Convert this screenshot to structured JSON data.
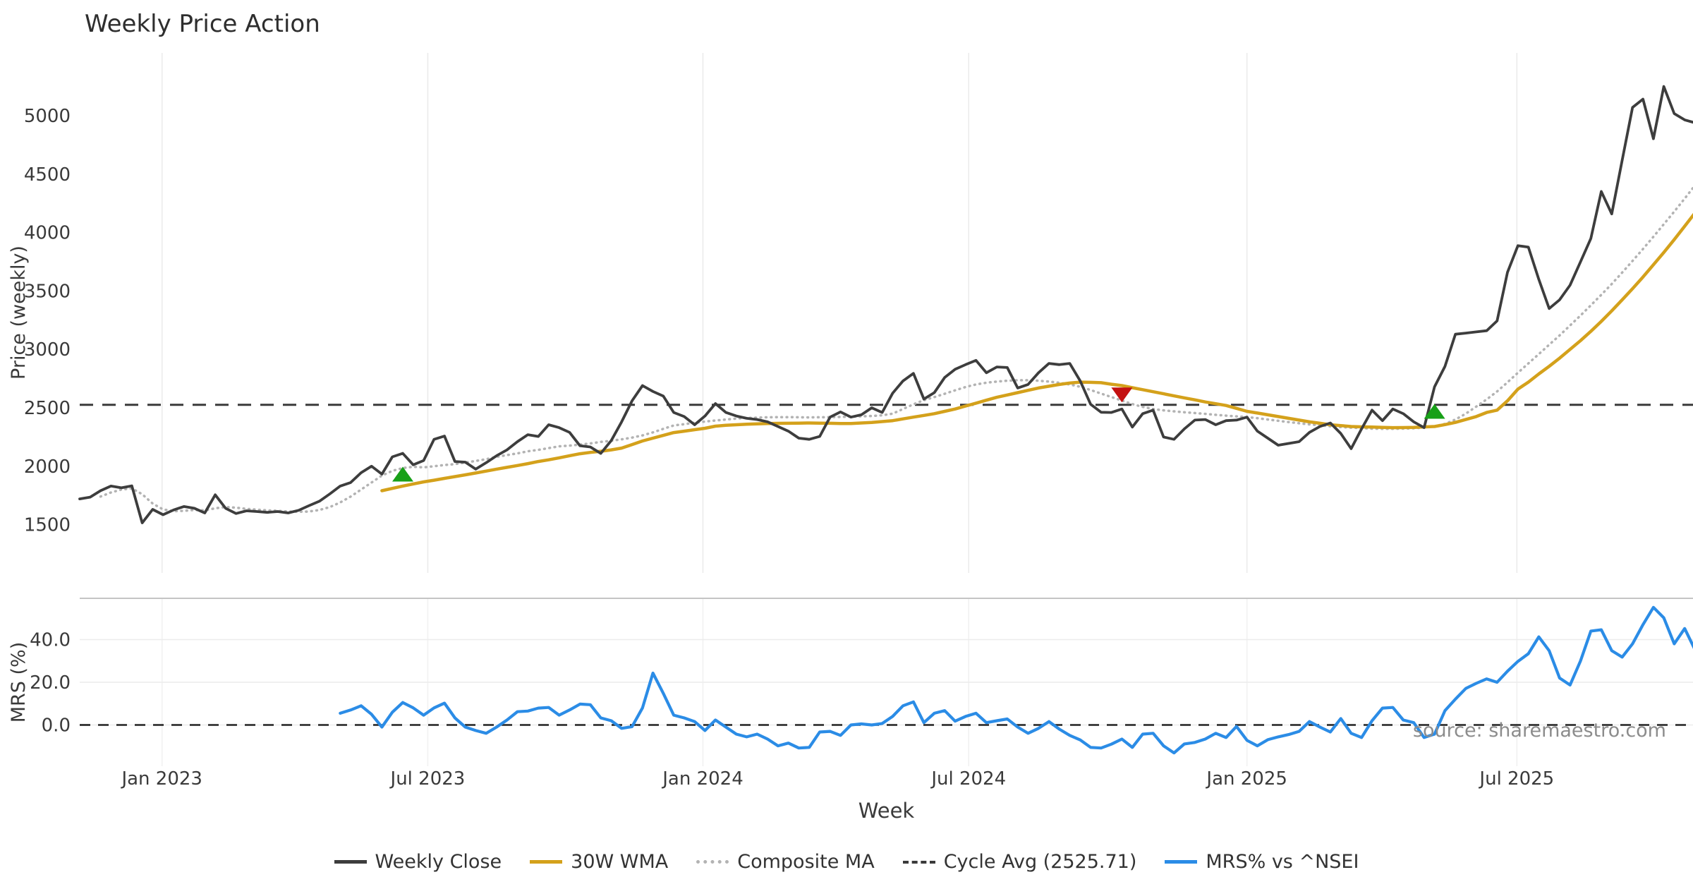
{
  "title": "Weekly Price Action",
  "source_note": "source: sharemaestro.com",
  "xlabel": "Week",
  "legend": {
    "items": [
      {
        "label": "Weekly Close",
        "color": "#3d3d3d",
        "style": "solid"
      },
      {
        "label": "30W WMA",
        "color": "#d4a11b",
        "style": "solid"
      },
      {
        "label": "Composite MA",
        "color": "#b3b3b3",
        "style": "dotted"
      },
      {
        "label": "Cycle Avg (2525.71)",
        "color": "#3a3a3a",
        "style": "dashed"
      },
      {
        "label": "MRS% vs ^NSEI",
        "color": "#2b8ce6",
        "style": "solid"
      }
    ]
  },
  "chart_data": [
    {
      "type": "line",
      "panel": "price",
      "title": "Weekly Price Action",
      "xlabel": "Week",
      "ylabel": "Price (weekly)",
      "x_start_date": "2022-11-07",
      "x_interval": "weekly",
      "n_weeks": 156,
      "ylim": [
        1100,
        5540
      ],
      "grid": "vertical-only",
      "legend_position": "bottom-center",
      "yticks": [
        1500,
        2000,
        2500,
        3000,
        3500,
        4000,
        4500,
        5000
      ],
      "xticks": [
        {
          "label": "Jan 2023",
          "week": 7.9
        },
        {
          "label": "Jul 2023",
          "week": 33.4
        },
        {
          "label": "Jan 2024",
          "week": 59.8
        },
        {
          "label": "Jul 2024",
          "week": 85.3
        },
        {
          "label": "Jan 2025",
          "week": 112.0
        },
        {
          "label": "Jul 2025",
          "week": 137.9
        }
      ],
      "cycle_avg": 2525.71,
      "series": [
        {
          "name": "Weekly Close",
          "color": "#3d3d3d",
          "style": "solid",
          "width": 3.8,
          "values": [
            1720,
            1735,
            1790,
            1830,
            1815,
            1832,
            1515,
            1630,
            1585,
            1625,
            1655,
            1640,
            1600,
            1755,
            1640,
            1595,
            1618,
            1612,
            1605,
            1612,
            1600,
            1622,
            1662,
            1700,
            1763,
            1830,
            1860,
            1944,
            2000,
            1932,
            2080,
            2110,
            2012,
            2048,
            2230,
            2258,
            2040,
            2035,
            1975,
            2030,
            2090,
            2140,
            2210,
            2270,
            2255,
            2355,
            2330,
            2290,
            2175,
            2165,
            2110,
            2220,
            2380,
            2560,
            2690,
            2640,
            2600,
            2460,
            2425,
            2355,
            2430,
            2536,
            2460,
            2430,
            2410,
            2400,
            2380,
            2340,
            2300,
            2240,
            2230,
            2255,
            2420,
            2465,
            2420,
            2440,
            2500,
            2460,
            2625,
            2730,
            2795,
            2575,
            2630,
            2760,
            2830,
            2870,
            2906,
            2800,
            2850,
            2845,
            2670,
            2700,
            2800,
            2880,
            2870,
            2880,
            2730,
            2530,
            2462,
            2460,
            2490,
            2335,
            2450,
            2480,
            2250,
            2230,
            2320,
            2395,
            2400,
            2355,
            2390,
            2395,
            2420,
            2300,
            2240,
            2180,
            2195,
            2210,
            2290,
            2340,
            2370,
            2280,
            2150,
            2320,
            2480,
            2390,
            2490,
            2450,
            2380,
            2330,
            2680,
            2855,
            3130,
            3140,
            3150,
            3160,
            3245,
            3660,
            3888,
            3876,
            3600,
            3350,
            3425,
            3550,
            3750,
            3950,
            4352,
            4160,
            4620,
            5072,
            5143,
            4804,
            5251,
            5019,
            4965,
            4940
          ]
        },
        {
          "name": "30W WMA",
          "color": "#d4a11b",
          "style": "solid",
          "width": 4.5,
          "values": [
            null,
            null,
            null,
            null,
            null,
            null,
            null,
            null,
            null,
            null,
            null,
            null,
            null,
            null,
            null,
            null,
            null,
            null,
            null,
            null,
            null,
            null,
            null,
            null,
            null,
            null,
            null,
            null,
            null,
            1790,
            1810,
            1830,
            1848,
            1866,
            1880,
            1896,
            1911,
            1926,
            1942,
            1958,
            1975,
            1990,
            2006,
            2022,
            2040,
            2055,
            2072,
            2090,
            2107,
            2118,
            2128,
            2140,
            2155,
            2185,
            2216,
            2240,
            2264,
            2288,
            2300,
            2313,
            2325,
            2343,
            2350,
            2355,
            2360,
            2362,
            2365,
            2367,
            2368,
            2369,
            2370,
            2369,
            2368,
            2366,
            2365,
            2370,
            2375,
            2382,
            2390,
            2405,
            2420,
            2435,
            2450,
            2470,
            2490,
            2515,
            2540,
            2565,
            2590,
            2610,
            2630,
            2650,
            2670,
            2685,
            2700,
            2712,
            2720,
            2718,
            2715,
            2702,
            2690,
            2672,
            2655,
            2638,
            2620,
            2602,
            2585,
            2568,
            2550,
            2535,
            2520,
            2495,
            2470,
            2455,
            2440,
            2425,
            2410,
            2395,
            2380,
            2368,
            2355,
            2348,
            2340,
            2337,
            2335,
            2332,
            2330,
            2331,
            2332,
            2336,
            2340,
            2356,
            2375,
            2400,
            2425,
            2460,
            2480,
            2560,
            2660,
            2720,
            2790,
            2855,
            2925,
            3000,
            3075,
            3155,
            3240,
            3330,
            3425,
            3520,
            3620,
            3725,
            3830,
            3940,
            4055,
            4170
          ]
        },
        {
          "name": "Composite MA",
          "color": "#b3b3b3",
          "style": "dotted",
          "width": 3.5,
          "values": [
            null,
            null,
            1740,
            1775,
            1800,
            1810,
            1760,
            1680,
            1630,
            1615,
            1618,
            1625,
            1622,
            1640,
            1650,
            1645,
            1635,
            1628,
            1622,
            1618,
            1612,
            1610,
            1612,
            1625,
            1650,
            1690,
            1740,
            1800,
            1860,
            1920,
            1960,
            1985,
            1995,
            1990,
            2000,
            2010,
            2018,
            2031,
            2045,
            2060,
            2080,
            2095,
            2110,
            2128,
            2140,
            2155,
            2170,
            2176,
            2185,
            2195,
            2208,
            2218,
            2230,
            2245,
            2264,
            2290,
            2320,
            2349,
            2360,
            2372,
            2382,
            2391,
            2400,
            2408,
            2413,
            2416,
            2419,
            2420,
            2420,
            2419,
            2418,
            2419,
            2420,
            2422,
            2424,
            2427,
            2430,
            2436,
            2450,
            2490,
            2530,
            2565,
            2592,
            2620,
            2650,
            2678,
            2700,
            2715,
            2725,
            2732,
            2736,
            2736,
            2732,
            2725,
            2714,
            2700,
            2680,
            2652,
            2622,
            2592,
            2562,
            2532,
            2508,
            2490,
            2478,
            2470,
            2462,
            2455,
            2448,
            2440,
            2433,
            2427,
            2421,
            2411,
            2400,
            2389,
            2378,
            2368,
            2358,
            2350,
            2342,
            2335,
            2330,
            2326,
            2322,
            2320,
            2320,
            2322,
            2325,
            2331,
            2342,
            2362,
            2400,
            2450,
            2510,
            2572,
            2640,
            2718,
            2800,
            2880,
            2960,
            3040,
            3120,
            3205,
            3290,
            3378,
            3468,
            3560,
            3658,
            3758,
            3860,
            3965,
            4072,
            4180,
            4292,
            4406
          ]
        },
        {
          "name": "Cycle Avg (2525.71)",
          "color": "#3a3a3a",
          "style": "dashed",
          "width": 3,
          "constant": 2525.71
        }
      ],
      "markers": [
        {
          "week": 31,
          "price": 1932,
          "shape": "triangle-up",
          "color": "#18a018",
          "meaning": "buy-signal"
        },
        {
          "week": 100,
          "price": 2610,
          "shape": "triangle-down",
          "color": "#c41111",
          "meaning": "sell-signal"
        },
        {
          "week": 130,
          "price": 2470,
          "shape": "triangle-up",
          "color": "#18a018",
          "meaning": "buy-signal"
        }
      ]
    },
    {
      "type": "line",
      "panel": "mrs",
      "ylabel": "MRS (%)",
      "zero_line": 0,
      "yticks": [
        {
          "label": "0.0",
          "value": 0
        },
        {
          "label": "20.0",
          "value": 20
        },
        {
          "label": "40.0",
          "value": 40
        }
      ],
      "series": [
        {
          "name": "MRS% vs ^NSEI",
          "color": "#2b8ce6",
          "style": "solid",
          "width": 4.2,
          "values": [
            null,
            null,
            null,
            null,
            null,
            null,
            null,
            null,
            null,
            null,
            null,
            null,
            null,
            null,
            null,
            null,
            null,
            null,
            null,
            null,
            null,
            null,
            null,
            null,
            null,
            5.5,
            7.0,
            9.0,
            5.0,
            -1.0,
            6.0,
            10.5,
            8.0,
            4.6,
            8.0,
            10.2,
            3.3,
            -1.0,
            -2.6,
            -3.9,
            -1.0,
            2.3,
            6.2,
            6.5,
            7.9,
            8.2,
            4.6,
            7.0,
            9.8,
            9.5,
            3.3,
            2.0,
            -1.6,
            -0.8,
            8.0,
            24.3,
            14.8,
            4.6,
            3.3,
            1.6,
            -2.6,
            2.3,
            -1.0,
            -4.3,
            -5.6,
            -4.3,
            -6.6,
            -9.8,
            -8.5,
            -10.8,
            -10.5,
            -3.3,
            -3.0,
            -4.9,
            0.0,
            0.5,
            0.0,
            0.7,
            4.0,
            9.0,
            10.8,
            1.1,
            5.5,
            6.7,
            1.8,
            4.0,
            5.5,
            1.1,
            2.0,
            2.8,
            -1.0,
            -3.9,
            -1.6,
            1.6,
            -2.0,
            -4.9,
            -7.0,
            -10.5,
            -10.8,
            -9.0,
            -6.6,
            -10.5,
            -4.3,
            -3.9,
            -9.8,
            -13.1,
            -8.9,
            -8.2,
            -6.6,
            -3.9,
            -5.9,
            -0.7,
            -7.2,
            -9.8,
            -6.9,
            -5.6,
            -4.5,
            -3.0,
            1.6,
            -1.0,
            -3.3,
            3.0,
            -3.9,
            -5.9,
            2.0,
            7.9,
            8.2,
            2.3,
            1.1,
            -5.9,
            -4.3,
            6.7,
            12.1,
            17.1,
            19.5,
            21.6,
            20.0,
            25.2,
            29.8,
            33.4,
            41.3,
            34.8,
            22.0,
            18.7,
            30.0,
            44.0,
            44.6,
            34.8,
            31.8,
            38.0,
            47.0,
            55.1,
            50.2,
            38.0,
            45.2,
            35.1
          ]
        }
      ]
    }
  ]
}
